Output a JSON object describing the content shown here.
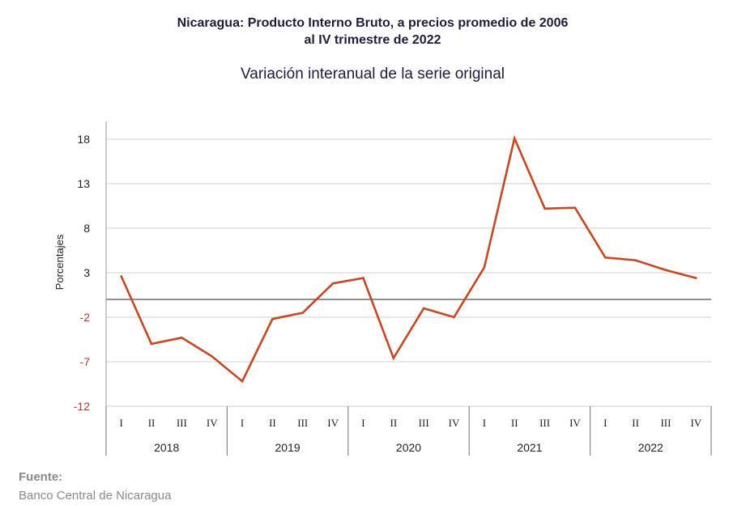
{
  "header": {
    "title_line1": "Nicaragua: Producto Interno Bruto, a precios promedio de 2006",
    "title_line2": "al IV trimestre de 2022",
    "subtitle": "Variación interanual de la serie original"
  },
  "source": {
    "label": "Fuente:",
    "text": "Banco Central de Nicaragua"
  },
  "colors": {
    "series": "#c9461f",
    "negative_tick": "#c0392b",
    "positive_tick": "#222222",
    "grid": "#cfcfcf",
    "zero_line": "#6b6b6b"
  },
  "chart_data": {
    "type": "line",
    "ylabel": "Porcentajes",
    "ylim": [
      -12,
      20
    ],
    "yticks": [
      18,
      13,
      8,
      3,
      -2,
      -7,
      -12
    ],
    "grid": true,
    "years": [
      "2018",
      "2019",
      "2020",
      "2021",
      "2022"
    ],
    "quarters": [
      "I",
      "II",
      "III",
      "IV"
    ],
    "series": [
      {
        "values": [
          2.6,
          -5.0,
          -4.3,
          -6.4,
          -9.2,
          -2.2,
          -1.5,
          1.8,
          2.4,
          -6.6,
          -1.0,
          -2.0,
          3.6,
          18.1,
          10.2,
          10.3,
          4.7,
          4.4,
          3.3,
          2.4
        ]
      }
    ]
  }
}
